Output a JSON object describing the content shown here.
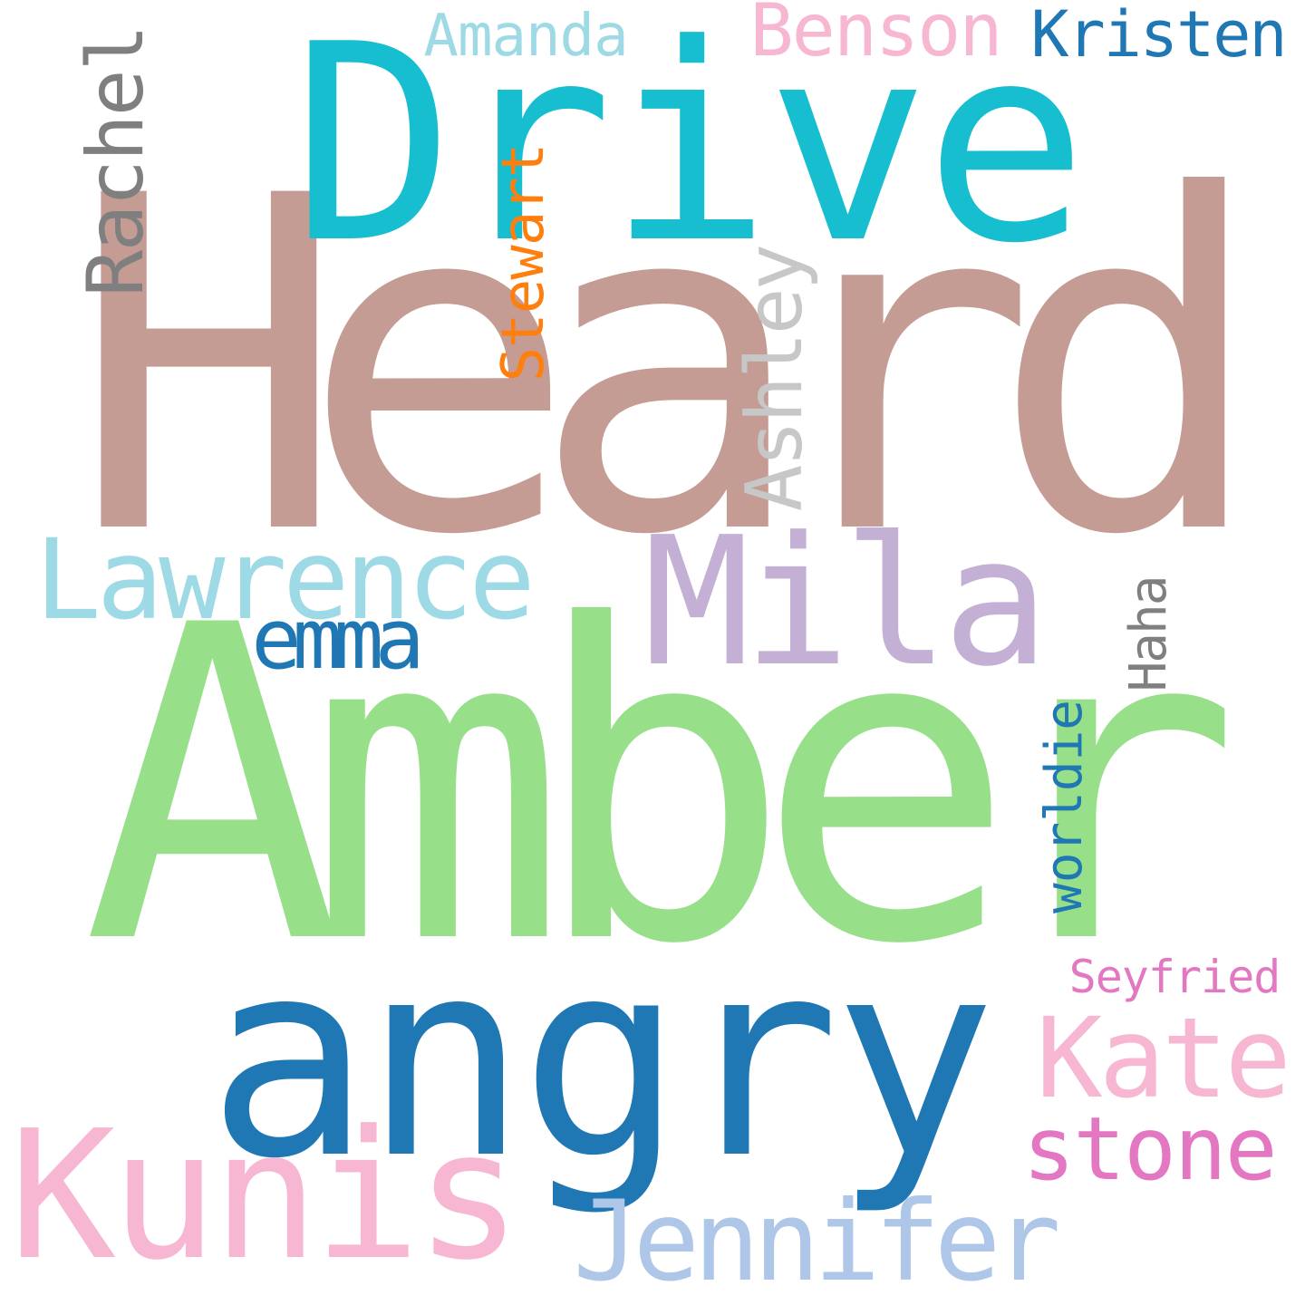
{
  "words": [
    {
      "id": "heard",
      "text": "Heard",
      "color": "#c49c94"
    },
    {
      "id": "amber",
      "text": "Amber",
      "color": "#98df8a"
    },
    {
      "id": "drive",
      "text": "Drive",
      "color": "#17becf"
    },
    {
      "id": "angry",
      "text": "angry",
      "color": "#1f77b4"
    },
    {
      "id": "kunis",
      "text": "Kunis",
      "color": "#f7b6d2"
    },
    {
      "id": "mila",
      "text": "Mila",
      "color": "#c5b0d5"
    },
    {
      "id": "lawrence",
      "text": "Lawrence",
      "color": "#9edae5"
    },
    {
      "id": "jennifer",
      "text": "Jennifer",
      "color": "#aec7e8"
    },
    {
      "id": "kate",
      "text": "Kate",
      "color": "#f7b6d2"
    },
    {
      "id": "stone",
      "text": "stone",
      "color": "#e377c2"
    },
    {
      "id": "emma",
      "text": "emma",
      "color": "#1f77b4"
    },
    {
      "id": "rachel",
      "text": "Rachel",
      "color": "#7f7f7f"
    },
    {
      "id": "ashley",
      "text": "Ashley",
      "color": "#c7c7c7"
    },
    {
      "id": "stewart",
      "text": "Stewart",
      "color": "#ff7f0e"
    },
    {
      "id": "benson",
      "text": "Benson",
      "color": "#f7b6d2"
    },
    {
      "id": "kristen",
      "text": "Kristen",
      "color": "#1f77b4"
    },
    {
      "id": "amanda",
      "text": "Amanda",
      "color": "#9edae5"
    },
    {
      "id": "worldie",
      "text": "worldie",
      "color": "#1f77b4"
    },
    {
      "id": "haha",
      "text": "Haha",
      "color": "#7f7f7f"
    },
    {
      "id": "seyfried",
      "text": "Seyfried",
      "color": "#e377c2"
    }
  ]
}
